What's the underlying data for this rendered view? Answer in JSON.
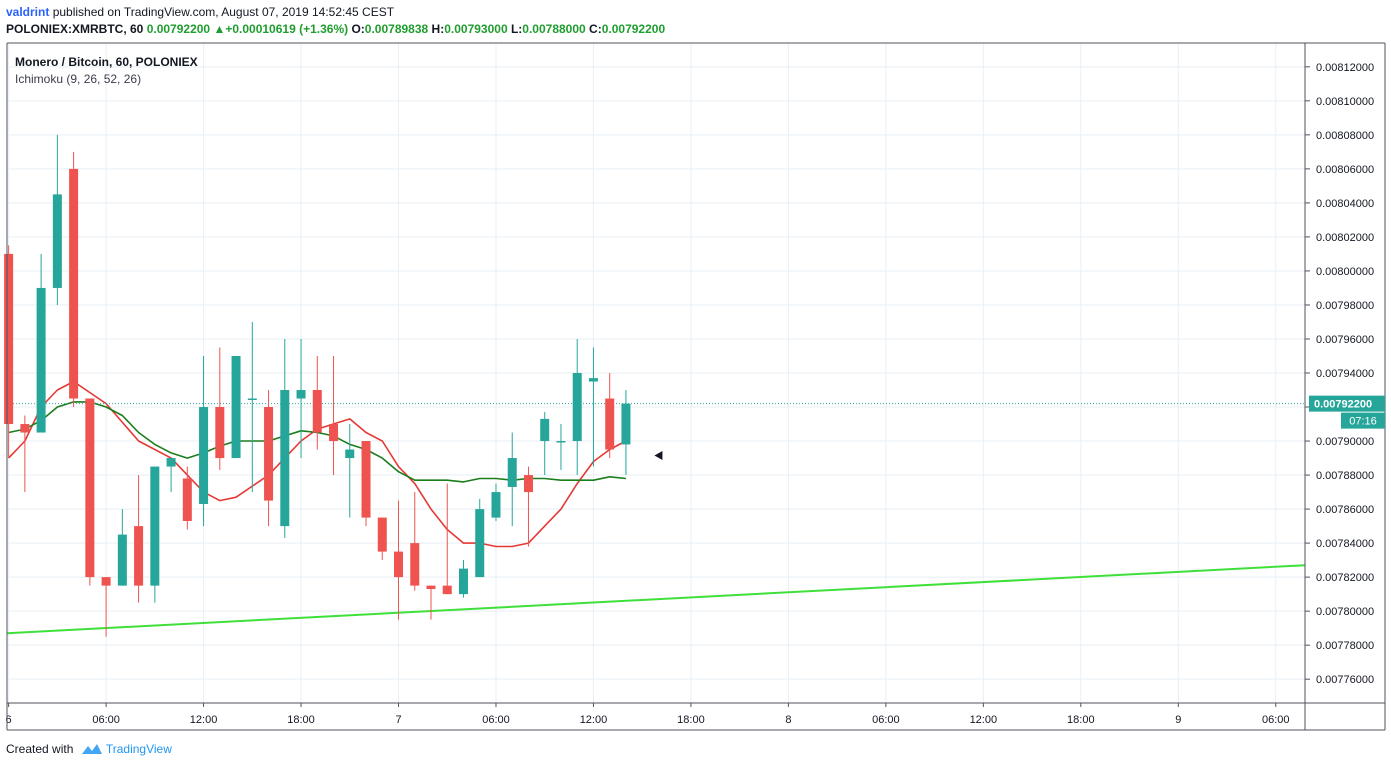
{
  "header": {
    "author": "valdrint",
    "published_text": "published on TradingView.com, August 07, 2019 14:52:45 CEST",
    "symbol": "POLONIEX:XMRBTC, 60",
    "last": "0.00792200",
    "change": "+0.00010619 (+1.36%)",
    "o_label": "O:",
    "o_value": "0.00789838",
    "h_label": "H:",
    "h_value": "0.00793000",
    "l_label": "L:",
    "l_value": "0.00788000",
    "c_label": "C:",
    "c_value": "0.00792200"
  },
  "legend": {
    "title": "Monero / Bitcoin, 60, POLONIEX",
    "indicator": "Ichimoku (9, 26, 52, 26)"
  },
  "footer": {
    "created": "Created with",
    "brand": "TradingView"
  },
  "colors": {
    "up": "#26a69a",
    "down": "#ef5350",
    "tenkan": "#e53935",
    "kijun": "#1b7d1b",
    "trendline": "#3fe03a",
    "price_label_bg": "#26a69a",
    "grid": "#e9eff4"
  },
  "chart_data": {
    "type": "candlestick",
    "ylim": [
      0.007746,
      0.008134
    ],
    "y_ticks": [
      "0.00812000",
      "0.00810000",
      "0.00808000",
      "0.00806000",
      "0.00804000",
      "0.00802000",
      "0.00800000",
      "0.00798000",
      "0.00796000",
      "0.00794000",
      "0.00792000",
      "0.00790000",
      "0.00788000",
      "0.00786000",
      "0.00784000",
      "0.00782000",
      "0.00780000",
      "0.00778000",
      "0.00776000"
    ],
    "x_labels": [
      {
        "hour": 0,
        "text": "6"
      },
      {
        "hour": 6,
        "text": "06:00"
      },
      {
        "hour": 12,
        "text": "12:00"
      },
      {
        "hour": 18,
        "text": "18:00"
      },
      {
        "hour": 24,
        "text": "7"
      },
      {
        "hour": 30,
        "text": "06:00"
      },
      {
        "hour": 36,
        "text": "12:00"
      },
      {
        "hour": 42,
        "text": "18:00"
      },
      {
        "hour": 48,
        "text": "8"
      },
      {
        "hour": 54,
        "text": "06:00"
      },
      {
        "hour": 60,
        "text": "12:00"
      },
      {
        "hour": 66,
        "text": "18:00"
      },
      {
        "hour": 72,
        "text": "9"
      },
      {
        "hour": 78,
        "text": "06:00"
      }
    ],
    "xlim": [
      -0.1,
      79.8
    ],
    "last_price": "0.00792200",
    "countdown": "07:16",
    "candles": [
      {
        "t": 0.0,
        "o": 0.00801,
        "h": 0.008015,
        "l": 0.00789,
        "c": 0.00791
      },
      {
        "t": 1.0,
        "o": 0.00791,
        "h": 0.007915,
        "l": 0.00787,
        "c": 0.007905
      },
      {
        "t": 2.0,
        "o": 0.007905,
        "h": 0.00801,
        "l": 0.007905,
        "c": 0.00799
      },
      {
        "t": 3.0,
        "o": 0.00799,
        "h": 0.00808,
        "l": 0.00798,
        "c": 0.008045
      },
      {
        "t": 4.0,
        "o": 0.00806,
        "h": 0.00807,
        "l": 0.00792,
        "c": 0.007925
      },
      {
        "t": 5.0,
        "o": 0.007925,
        "h": 0.007925,
        "l": 0.007815,
        "c": 0.00782
      },
      {
        "t": 6.0,
        "o": 0.00782,
        "h": 0.00782,
        "l": 0.007785,
        "c": 0.007815
      },
      {
        "t": 7.0,
        "o": 0.007815,
        "h": 0.00786,
        "l": 0.007815,
        "c": 0.007845
      },
      {
        "t": 8.0,
        "o": 0.00785,
        "h": 0.00788,
        "l": 0.007805,
        "c": 0.007815
      },
      {
        "t": 9.0,
        "o": 0.007815,
        "h": 0.007885,
        "l": 0.007805,
        "c": 0.007885
      },
      {
        "t": 10.0,
        "o": 0.007885,
        "h": 0.00789,
        "l": 0.00787,
        "c": 0.00789
      },
      {
        "t": 11.0,
        "o": 0.007878,
        "h": 0.007885,
        "l": 0.007848,
        "c": 0.007853
      },
      {
        "t": 12.0,
        "o": 0.007863,
        "h": 0.00795,
        "l": 0.00785,
        "c": 0.00792
      },
      {
        "t": 13.0,
        "o": 0.00792,
        "h": 0.007955,
        "l": 0.007883,
        "c": 0.00789
      },
      {
        "t": 14.0,
        "o": 0.00789,
        "h": 0.00795,
        "l": 0.00789,
        "c": 0.00795
      },
      {
        "t": 15.0,
        "o": 0.007925,
        "h": 0.00797,
        "l": 0.00787,
        "c": 0.007925
      },
      {
        "t": 16.0,
        "o": 0.00792,
        "h": 0.00793,
        "l": 0.00785,
        "c": 0.007865
      },
      {
        "t": 17.0,
        "o": 0.00785,
        "h": 0.00796,
        "l": 0.007843,
        "c": 0.00793
      },
      {
        "t": 18.0,
        "o": 0.007925,
        "h": 0.00796,
        "l": 0.00789,
        "c": 0.00793
      },
      {
        "t": 19.0,
        "o": 0.00793,
        "h": 0.00795,
        "l": 0.007895,
        "c": 0.007905
      },
      {
        "t": 20.0,
        "o": 0.00791,
        "h": 0.00795,
        "l": 0.00788,
        "c": 0.0079
      },
      {
        "t": 21.0,
        "o": 0.00789,
        "h": 0.00791,
        "l": 0.007855,
        "c": 0.007895
      },
      {
        "t": 22.0,
        "o": 0.0079,
        "h": 0.0079,
        "l": 0.00785,
        "c": 0.007855
      },
      {
        "t": 23.0,
        "o": 0.007855,
        "h": 0.007855,
        "l": 0.00783,
        "c": 0.007835
      },
      {
        "t": 24.0,
        "o": 0.007835,
        "h": 0.007865,
        "l": 0.007795,
        "c": 0.00782
      },
      {
        "t": 25.0,
        "o": 0.00784,
        "h": 0.00787,
        "l": 0.007812,
        "c": 0.007815
      },
      {
        "t": 26.0,
        "o": 0.007815,
        "h": 0.007815,
        "l": 0.007795,
        "c": 0.007813
      },
      {
        "t": 27.0,
        "o": 0.007815,
        "h": 0.007875,
        "l": 0.00781,
        "c": 0.00781
      },
      {
        "t": 28.0,
        "o": 0.00781,
        "h": 0.00783,
        "l": 0.007808,
        "c": 0.007825
      },
      {
        "t": 29.0,
        "o": 0.00782,
        "h": 0.007866,
        "l": 0.00782,
        "c": 0.00786
      },
      {
        "t": 30.0,
        "o": 0.007855,
        "h": 0.007875,
        "l": 0.007853,
        "c": 0.00787
      },
      {
        "t": 31.0,
        "o": 0.007873,
        "h": 0.007905,
        "l": 0.00785,
        "c": 0.00789
      },
      {
        "t": 32.0,
        "o": 0.00788,
        "h": 0.007885,
        "l": 0.007838,
        "c": 0.00787
      },
      {
        "t": 33.0,
        "o": 0.0079,
        "h": 0.007917,
        "l": 0.00788,
        "c": 0.007913
      },
      {
        "t": 34.0,
        "o": 0.0079,
        "h": 0.00791,
        "l": 0.007883,
        "c": 0.0079
      },
      {
        "t": 35.0,
        "o": 0.0079,
        "h": 0.00796,
        "l": 0.00788,
        "c": 0.00794
      },
      {
        "t": 36.0,
        "o": 0.007935,
        "h": 0.007955,
        "l": 0.007885,
        "c": 0.007937
      },
      {
        "t": 37.0,
        "o": 0.007925,
        "h": 0.00794,
        "l": 0.00789,
        "c": 0.007895
      },
      {
        "t": 38.0,
        "o": 0.007898,
        "h": 0.00793,
        "l": 0.00788,
        "c": 0.007922
      }
    ],
    "tenkan": [
      {
        "t": 0.0,
        "y": 0.00789
      },
      {
        "t": 1.0,
        "y": 0.0079
      },
      {
        "t": 2.0,
        "y": 0.00792
      },
      {
        "t": 3.0,
        "y": 0.00793
      },
      {
        "t": 4.0,
        "y": 0.007935
      },
      {
        "t": 6.0,
        "y": 0.007922
      },
      {
        "t": 8.0,
        "y": 0.0079
      },
      {
        "t": 10.0,
        "y": 0.00789
      },
      {
        "t": 12.0,
        "y": 0.00787
      },
      {
        "t": 13.0,
        "y": 0.007865
      },
      {
        "t": 14.0,
        "y": 0.007867
      },
      {
        "t": 16.0,
        "y": 0.00788
      },
      {
        "t": 17.0,
        "y": 0.00789
      },
      {
        "t": 18.0,
        "y": 0.0079
      },
      {
        "t": 19.0,
        "y": 0.007907
      },
      {
        "t": 20.0,
        "y": 0.00791
      },
      {
        "t": 21.0,
        "y": 0.007913
      },
      {
        "t": 22.0,
        "y": 0.007905
      },
      {
        "t": 23.0,
        "y": 0.0079
      },
      {
        "t": 24.0,
        "y": 0.007885
      },
      {
        "t": 25.0,
        "y": 0.007875
      },
      {
        "t": 26.0,
        "y": 0.00786
      },
      {
        "t": 27.0,
        "y": 0.007848
      },
      {
        "t": 28.0,
        "y": 0.00784
      },
      {
        "t": 29.0,
        "y": 0.00784
      },
      {
        "t": 30.0,
        "y": 0.007838
      },
      {
        "t": 31.0,
        "y": 0.007838
      },
      {
        "t": 32.0,
        "y": 0.00784
      },
      {
        "t": 33.0,
        "y": 0.00785
      },
      {
        "t": 34.0,
        "y": 0.00786
      },
      {
        "t": 35.0,
        "y": 0.007875
      },
      {
        "t": 36.0,
        "y": 0.007888
      },
      {
        "t": 37.0,
        "y": 0.007895
      },
      {
        "t": 38.0,
        "y": 0.0079
      }
    ],
    "kijun": [
      {
        "t": 0.0,
        "y": 0.007905
      },
      {
        "t": 1.0,
        "y": 0.007907
      },
      {
        "t": 2.0,
        "y": 0.007912
      },
      {
        "t": 3.0,
        "y": 0.00792
      },
      {
        "t": 4.0,
        "y": 0.007923
      },
      {
        "t": 5.0,
        "y": 0.007923
      },
      {
        "t": 6.0,
        "y": 0.00792
      },
      {
        "t": 7.0,
        "y": 0.007915
      },
      {
        "t": 8.0,
        "y": 0.007905
      },
      {
        "t": 9.0,
        "y": 0.007898
      },
      {
        "t": 10.0,
        "y": 0.007893
      },
      {
        "t": 11.0,
        "y": 0.00789
      },
      {
        "t": 12.0,
        "y": 0.007893
      },
      {
        "t": 13.0,
        "y": 0.007897
      },
      {
        "t": 14.0,
        "y": 0.0079
      },
      {
        "t": 15.0,
        "y": 0.0079
      },
      {
        "t": 16.0,
        "y": 0.0079
      },
      {
        "t": 17.0,
        "y": 0.007903
      },
      {
        "t": 18.0,
        "y": 0.007906
      },
      {
        "t": 19.0,
        "y": 0.007905
      },
      {
        "t": 20.0,
        "y": 0.007903
      },
      {
        "t": 21.0,
        "y": 0.007898
      },
      {
        "t": 22.0,
        "y": 0.007895
      },
      {
        "t": 23.0,
        "y": 0.00789
      },
      {
        "t": 24.0,
        "y": 0.007882
      },
      {
        "t": 25.0,
        "y": 0.007877
      },
      {
        "t": 26.0,
        "y": 0.007877
      },
      {
        "t": 27.0,
        "y": 0.007877
      },
      {
        "t": 28.0,
        "y": 0.007876
      },
      {
        "t": 29.0,
        "y": 0.007878
      },
      {
        "t": 30.0,
        "y": 0.007878
      },
      {
        "t": 31.0,
        "y": 0.007877
      },
      {
        "t": 32.0,
        "y": 0.007878
      },
      {
        "t": 33.0,
        "y": 0.007878
      },
      {
        "t": 34.0,
        "y": 0.007877
      },
      {
        "t": 35.0,
        "y": 0.007877
      },
      {
        "t": 36.0,
        "y": 0.007877
      },
      {
        "t": 37.0,
        "y": 0.007879
      },
      {
        "t": 38.0,
        "y": 0.007878
      }
    ],
    "trendline": [
      {
        "t": -0.1,
        "y": 0.007787
      },
      {
        "t": 79.8,
        "y": 0.007827
      }
    ],
    "cursor_marker": {
      "t": 40.0,
      "y": 0.0078915
    }
  }
}
